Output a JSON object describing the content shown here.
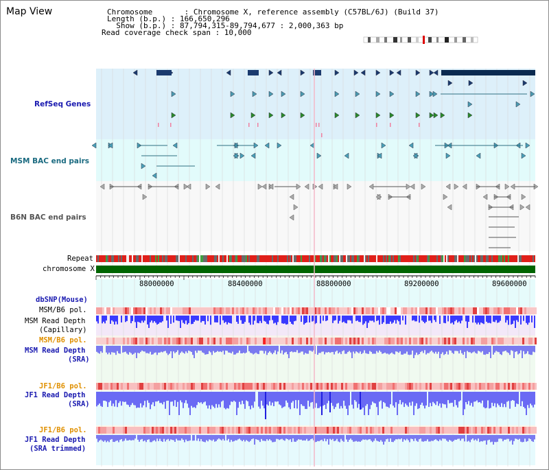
{
  "title": "Map View",
  "header": {
    "chromosome": "Chromosome       : Chromosome X, reference assembly (C57BL/6J) (Build 37)",
    "length": "Length (b.p.) : 166,650,296",
    "show": "  Show (b.p.) : 87,794,315-89,794,677 : 2,000,363 bp",
    "coverage": "Read coverage check span : 10,000"
  },
  "tracks": {
    "refseq": "RefSeq Genes",
    "msm_bac": "MSM BAC end pairs",
    "b6n_bac": "B6N BAC end pairs",
    "repeat": "Repeat",
    "chromosome": "chromosome X",
    "dbsnp": "dbSNP(Mouse)",
    "msm_b6_pol_1": "MSM/B6 pol.",
    "msm_rd_cap_1": "MSM Read Depth",
    "msm_rd_cap_2": "(Capillary)",
    "msm_b6_pol_2": "MSM/B6 pol.",
    "msm_rd_sra_1": "MSM Read Depth",
    "msm_rd_sra_2": "(SRA)",
    "jf1_b6_pol_1": "JF1/B6 pol.",
    "jf1_rd_sra_1": "JF1 Read Depth",
    "jf1_rd_sra_2": "(SRA)",
    "jf1_b6_pol_2": "JF1/B6 pol.",
    "jf1_rd_trim_1": "JF1 Read Depth",
    "jf1_rd_trim_2": "(SRA trimmed)"
  },
  "axis": {
    "ticks": [
      "88000000",
      "88400000",
      "88800000",
      "89200000",
      "89600000"
    ]
  },
  "colors": {
    "refseq_bg": "#ddf0fa",
    "msm_bac_bg": "#e2fbfb",
    "gene_blue": "#1a3a6e",
    "gene_teal": "#2f6f82",
    "gene_green": "#2a8a2a",
    "msm_label": "#1a6a80",
    "b6n_label": "#555555",
    "chrom_bar": "#006400",
    "repeat_red": "#e0201a",
    "repeat_gray": "#6a6a6a",
    "pol_pink": "#f4b0b0",
    "depth_blue": "#3a3aff",
    "depth_light": "#7a7af0",
    "orange_label": "#e09000",
    "navy_label": "#1a1ab0"
  }
}
